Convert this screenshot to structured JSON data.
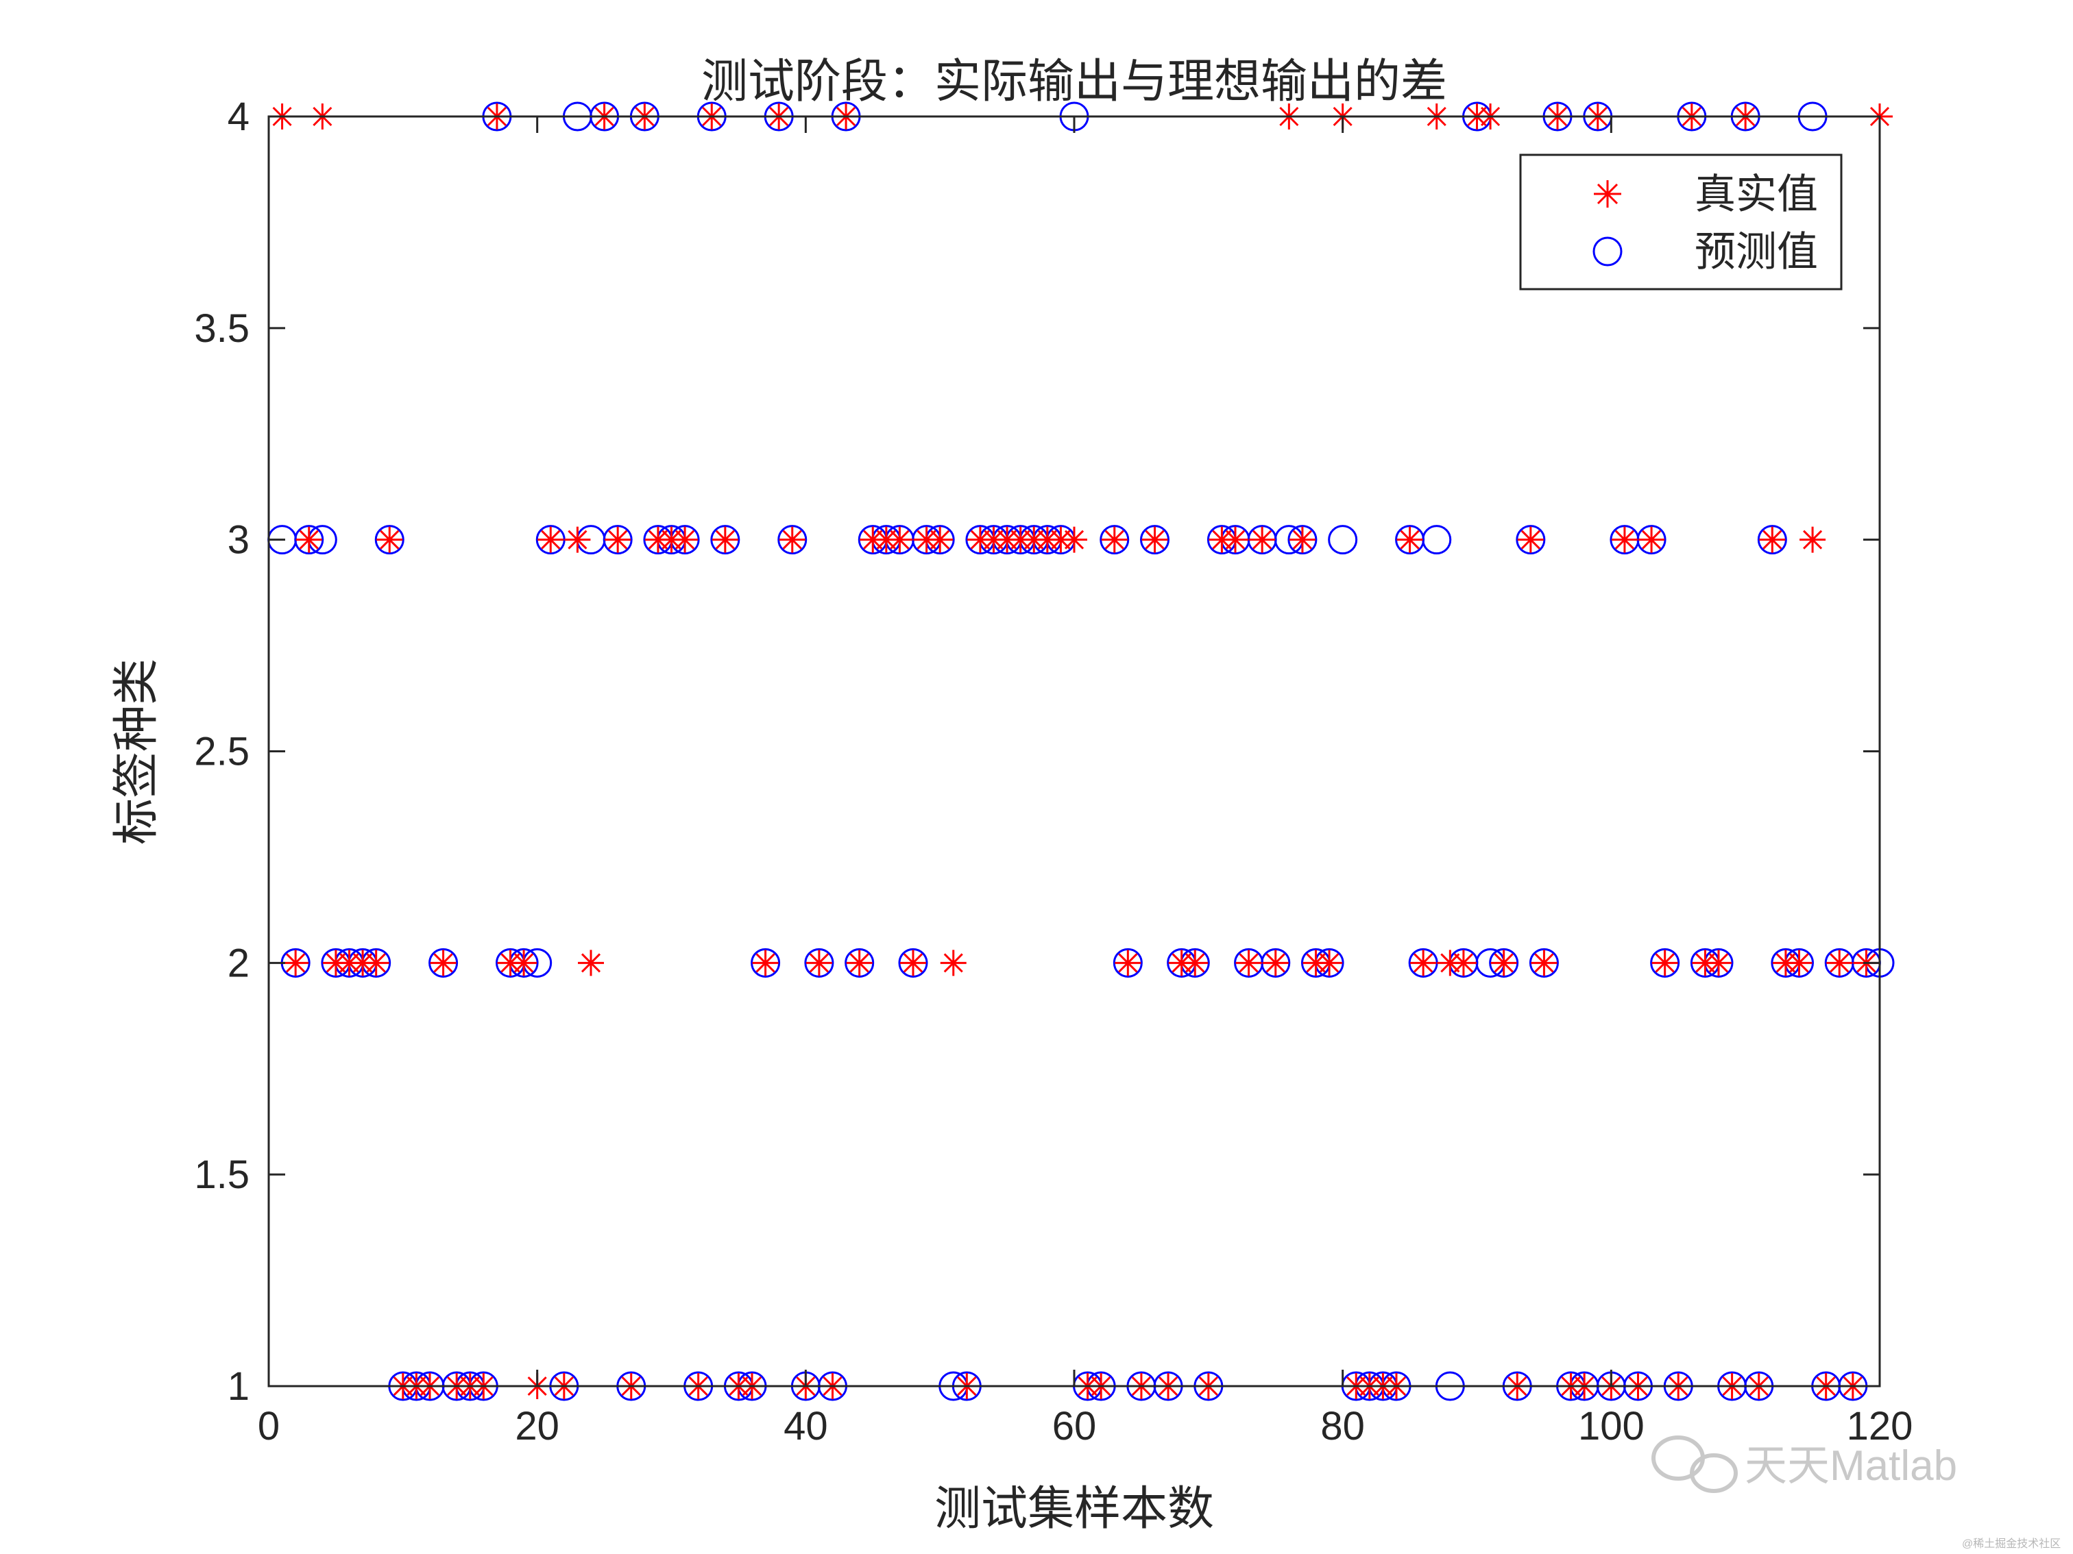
{
  "chart_data": {
    "type": "scatter",
    "title": "测试阶段：实际输出与理想输出的差",
    "xlabel": "测试集样本数",
    "ylabel": "标签种类",
    "xlim": [
      0,
      120
    ],
    "ylim": [
      1,
      4
    ],
    "xticks": [
      0,
      20,
      40,
      60,
      80,
      100,
      120
    ],
    "yticks": [
      1,
      1.5,
      2,
      2.5,
      3,
      3.5,
      4
    ],
    "ytick_labels": [
      "1",
      "1.5",
      "2",
      "2.5",
      "3",
      "3.5",
      "4"
    ],
    "grid": false,
    "legend_position": "top-right",
    "series": [
      {
        "name": "真实值",
        "marker": "asterisk",
        "color": "#ff0000",
        "x": [
          1,
          2,
          3,
          4,
          5,
          6,
          7,
          8,
          9,
          10,
          11,
          12,
          13,
          14,
          15,
          16,
          17,
          18,
          19,
          20,
          21,
          22,
          23,
          24,
          25,
          26,
          27,
          28,
          29,
          30,
          31,
          32,
          33,
          34,
          35,
          36,
          37,
          38,
          39,
          40,
          41,
          42,
          43,
          44,
          45,
          46,
          47,
          48,
          49,
          50,
          51,
          52,
          53,
          54,
          55,
          56,
          57,
          58,
          59,
          60,
          61,
          62,
          63,
          64,
          65,
          66,
          67,
          68,
          69,
          70,
          71,
          72,
          73,
          74,
          75,
          76,
          77,
          78,
          79,
          80,
          81,
          82,
          83,
          84,
          85,
          86,
          87,
          88,
          89,
          90,
          91,
          92,
          93,
          94,
          95,
          96,
          97,
          98,
          99,
          100,
          101,
          102,
          103,
          104,
          105,
          106,
          107,
          108,
          109,
          110,
          111,
          112,
          113,
          114,
          115,
          116,
          117,
          118,
          119,
          120
        ],
        "y": [
          4,
          2,
          3,
          4,
          2,
          2,
          2,
          2,
          3,
          1,
          1,
          1,
          2,
          1,
          1,
          1,
          4,
          2,
          2,
          1,
          3,
          1,
          3,
          2,
          4,
          3,
          1,
          4,
          3,
          3,
          3,
          1,
          4,
          3,
          1,
          1,
          2,
          4,
          3,
          1,
          2,
          1,
          4,
          2,
          3,
          3,
          3,
          2,
          3,
          3,
          2,
          1,
          3,
          3,
          3,
          3,
          3,
          3,
          3,
          3,
          1,
          1,
          3,
          2,
          1,
          3,
          1,
          2,
          2,
          1,
          3,
          3,
          2,
          3,
          2,
          4,
          3,
          2,
          2,
          4,
          1,
          1,
          1,
          1,
          3,
          2,
          4,
          2,
          2,
          4,
          4,
          2,
          1,
          3,
          2,
          4,
          1,
          1,
          4,
          1,
          3,
          1,
          3,
          2,
          1,
          4,
          2,
          2,
          1,
          4,
          1,
          3,
          2,
          2,
          3,
          1,
          2,
          1,
          2,
          4
        ]
      },
      {
        "name": "预测值",
        "marker": "circle",
        "color": "#0000ff",
        "x": [
          1,
          2,
          3,
          4,
          5,
          6,
          7,
          8,
          9,
          10,
          11,
          12,
          13,
          14,
          15,
          16,
          17,
          18,
          19,
          20,
          21,
          22,
          23,
          24,
          25,
          26,
          27,
          28,
          29,
          30,
          31,
          32,
          33,
          34,
          35,
          36,
          37,
          38,
          39,
          40,
          41,
          42,
          43,
          44,
          45,
          46,
          47,
          48,
          49,
          50,
          51,
          52,
          53,
          54,
          55,
          56,
          57,
          58,
          59,
          60,
          61,
          62,
          63,
          64,
          65,
          66,
          67,
          68,
          69,
          70,
          71,
          72,
          73,
          74,
          75,
          76,
          77,
          78,
          79,
          80,
          81,
          82,
          83,
          84,
          85,
          86,
          87,
          88,
          89,
          90,
          91,
          92,
          93,
          94,
          95,
          96,
          97,
          98,
          99,
          100,
          101,
          102,
          103,
          104,
          105,
          106,
          107,
          108,
          109,
          110,
          111,
          112,
          113,
          114,
          115,
          116,
          117,
          118,
          119,
          120
        ],
        "y": [
          3,
          2,
          3,
          3,
          2,
          2,
          2,
          2,
          3,
          1,
          1,
          1,
          2,
          1,
          1,
          1,
          4,
          2,
          2,
          2,
          3,
          1,
          4,
          3,
          4,
          3,
          1,
          4,
          3,
          3,
          3,
          1,
          4,
          3,
          1,
          1,
          2,
          4,
          3,
          1,
          2,
          1,
          4,
          2,
          3,
          3,
          3,
          2,
          3,
          3,
          1,
          1,
          3,
          3,
          3,
          3,
          3,
          3,
          3,
          4,
          1,
          1,
          3,
          2,
          1,
          3,
          1,
          2,
          2,
          1,
          3,
          3,
          2,
          3,
          2,
          3,
          3,
          2,
          2,
          3,
          1,
          1,
          1,
          1,
          3,
          2,
          3,
          1,
          2,
          4,
          2,
          2,
          1,
          3,
          2,
          4,
          1,
          1,
          4,
          1,
          3,
          1,
          3,
          2,
          1,
          4,
          2,
          2,
          1,
          4,
          1,
          3,
          2,
          2,
          4,
          1,
          2,
          1,
          2,
          2
        ]
      }
    ]
  },
  "watermark": {
    "text": "天天Matlab",
    "small_text": "@稀土掘金技术社区"
  }
}
